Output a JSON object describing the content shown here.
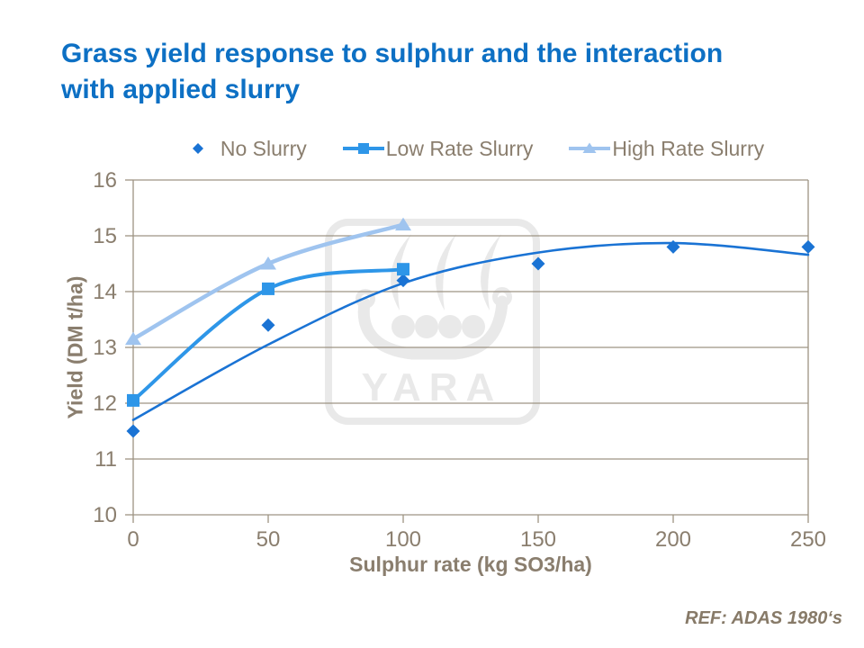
{
  "slide": {
    "title_line1": "Grass yield response to sulphur and the interaction",
    "title_line2": "with applied slurry",
    "reference": "REF: ADAS 1980‘s",
    "watermark_text": "YARA"
  },
  "colors": {
    "title_blue": "#0d70c4",
    "axis_text": "#8a7e6e",
    "grid_axis": "#9d9383",
    "watermark_gray": "#e9e9e9",
    "background": "#ffffff"
  },
  "chart_data": {
    "type": "line",
    "title": "Grass yield response to sulphur and the interaction with applied slurry",
    "xlabel": "Sulphur rate (kg SO3/ha)",
    "ylabel": "Yield (DM t/ha)",
    "xlim": [
      0,
      250
    ],
    "ylim": [
      10,
      16
    ],
    "xticks": [
      0,
      50,
      100,
      150,
      200,
      250
    ],
    "yticks": [
      10,
      11,
      12,
      13,
      14,
      15,
      16
    ],
    "grid": "horizontal",
    "legend_position": "top-center",
    "axis_color": "#9d9383",
    "tick_color": "#8a7e6e",
    "series": [
      {
        "name": "No Slurry",
        "marker": "diamond",
        "color": "#1a73d4",
        "line_width": 2.6,
        "legend_line": false,
        "points": [
          [
            0,
            11.5
          ],
          [
            50,
            13.4
          ],
          [
            100,
            14.2
          ],
          [
            150,
            14.5
          ],
          [
            200,
            14.8
          ],
          [
            250,
            14.8
          ]
        ],
        "trend": [
          [
            0,
            11.7
          ],
          [
            50,
            13.05
          ],
          [
            100,
            14.15
          ],
          [
            150,
            14.7
          ],
          [
            200,
            14.87
          ],
          [
            250,
            14.66
          ]
        ]
      },
      {
        "name": "Low Rate Slurry",
        "marker": "square",
        "color": "#2e96e8",
        "line_width": 4,
        "legend_line": true,
        "points": [
          [
            0,
            12.05
          ],
          [
            50,
            14.05
          ],
          [
            100,
            14.4
          ]
        ],
        "trend": [
          [
            0,
            12.05
          ],
          [
            50,
            14.05
          ],
          [
            100,
            14.4
          ]
        ]
      },
      {
        "name": "High Rate Slurry",
        "marker": "triangle",
        "color": "#9fc4ef",
        "line_width": 4.5,
        "legend_line": true,
        "points": [
          [
            0,
            13.15
          ],
          [
            50,
            14.5
          ],
          [
            100,
            15.2
          ]
        ],
        "trend": [
          [
            0,
            13.15
          ],
          [
            50,
            14.5
          ],
          [
            100,
            15.2
          ]
        ]
      }
    ]
  }
}
